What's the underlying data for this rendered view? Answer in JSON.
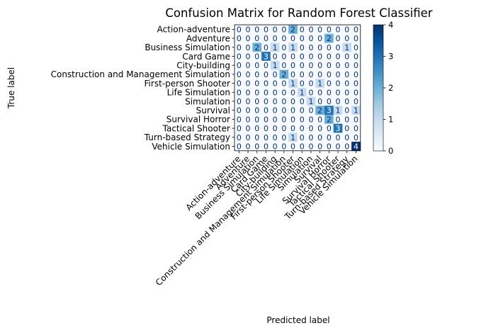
{
  "chart_data": {
    "type": "heatmap",
    "title": "Confusion Matrix for Random Forest Classifier",
    "xlabel": "Predicted label",
    "ylabel": "True label",
    "labels": [
      "Action-adventure",
      "Adventure",
      "Business Simulation",
      "Card Game",
      "City-building",
      "Construction and Management Simulation",
      "First-person Shooter",
      "Life Simulation",
      "Simulation",
      "Survival",
      "Survival Horror",
      "Tactical Shooter",
      "Turn-based Strategy",
      "Vehicle Simulation"
    ],
    "matrix": [
      [
        0,
        0,
        0,
        0,
        0,
        0,
        2,
        0,
        0,
        0,
        0,
        0,
        0,
        0
      ],
      [
        0,
        0,
        0,
        0,
        0,
        0,
        0,
        0,
        0,
        0,
        2,
        0,
        0,
        0
      ],
      [
        0,
        0,
        2,
        0,
        1,
        0,
        1,
        0,
        0,
        0,
        0,
        0,
        1,
        0
      ],
      [
        0,
        0,
        0,
        3,
        0,
        0,
        0,
        0,
        0,
        0,
        0,
        0,
        0,
        0
      ],
      [
        0,
        0,
        0,
        0,
        1,
        0,
        0,
        0,
        0,
        0,
        0,
        0,
        0,
        0
      ],
      [
        0,
        0,
        0,
        0,
        0,
        2,
        0,
        0,
        0,
        0,
        0,
        0,
        0,
        0
      ],
      [
        0,
        0,
        0,
        0,
        0,
        0,
        1,
        0,
        0,
        1,
        0,
        0,
        0,
        0
      ],
      [
        0,
        0,
        0,
        0,
        0,
        0,
        0,
        1,
        0,
        0,
        0,
        0,
        0,
        0
      ],
      [
        0,
        0,
        0,
        0,
        0,
        0,
        0,
        0,
        1,
        0,
        0,
        0,
        0,
        0
      ],
      [
        0,
        0,
        0,
        0,
        0,
        0,
        0,
        0,
        0,
        2,
        3,
        1,
        0,
        1
      ],
      [
        0,
        0,
        0,
        0,
        0,
        0,
        0,
        0,
        0,
        0,
        2,
        0,
        0,
        0
      ],
      [
        0,
        0,
        0,
        0,
        0,
        0,
        0,
        0,
        0,
        0,
        0,
        3,
        0,
        0
      ],
      [
        0,
        0,
        0,
        0,
        0,
        0,
        1,
        0,
        0,
        0,
        0,
        0,
        0,
        0
      ],
      [
        0,
        0,
        0,
        0,
        0,
        0,
        0,
        0,
        0,
        0,
        0,
        0,
        0,
        4
      ]
    ],
    "colormap": "Blues",
    "vmin": 0,
    "vmax": 4,
    "colorbar_ticks": [
      0,
      1,
      2,
      3,
      4
    ],
    "colors": {
      "low": "#f7fbff",
      "high": "#08306b",
      "text_dark": "#08306b",
      "text_light": "#ffffff"
    }
  }
}
